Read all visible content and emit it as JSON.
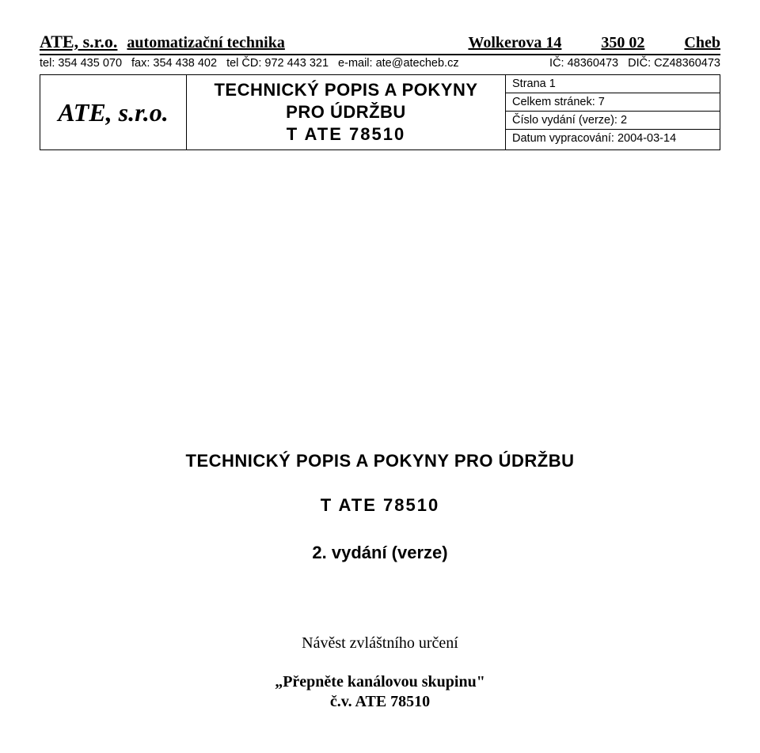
{
  "header": {
    "company": "ATE, s.r.o.",
    "company_desc": "automatizační technika",
    "address": "Wolkerova 14",
    "zip": "350 02",
    "city": "Cheb"
  },
  "contact": {
    "tel": "tel: 354 435 070",
    "fax": "fax: 354 438 402",
    "telcd": "tel ČD: 972 443 321",
    "email": "e-mail: ate@atecheb.cz",
    "ic": "IČ: 48360473",
    "dic": "DIČ: CZ48360473"
  },
  "box": {
    "left": "ATE, s.r.o.",
    "mid": {
      "l1": "TECHNICKÝ POPIS A POKYNY",
      "l2": "PRO ÚDRŽBU",
      "l3": "T  ATE  78510"
    },
    "right": {
      "r1": "Strana 1",
      "r2": "Celkem stránek: 7",
      "r3": "Číslo vydání (verze): 2",
      "r4": "Datum vypracování: 2004-03-14"
    }
  },
  "main": {
    "title": "TECHNICKÝ POPIS A POKYNY PRO ÚDRŽBU",
    "code": "T  ATE 78510",
    "edition": "2. vydání (verze)",
    "sub1": "Návěst zvláštního určení",
    "sub2": "„Přepněte kanálovou skupinu\"",
    "sub3": "č.v.  ATE 78510"
  },
  "style": {
    "background_color": "#ffffff",
    "text_color": "#000000",
    "border_color": "#000000",
    "header_font": "Times New Roman",
    "body_font": "Arial",
    "header_fontsize": 22,
    "contact_fontsize": 14.5,
    "box_left_fontsize": 32,
    "box_mid_fontsize": 22,
    "box_right_fontsize": 14.5,
    "main_title_fontsize": 22,
    "main_sub_fontsize": 20
  }
}
